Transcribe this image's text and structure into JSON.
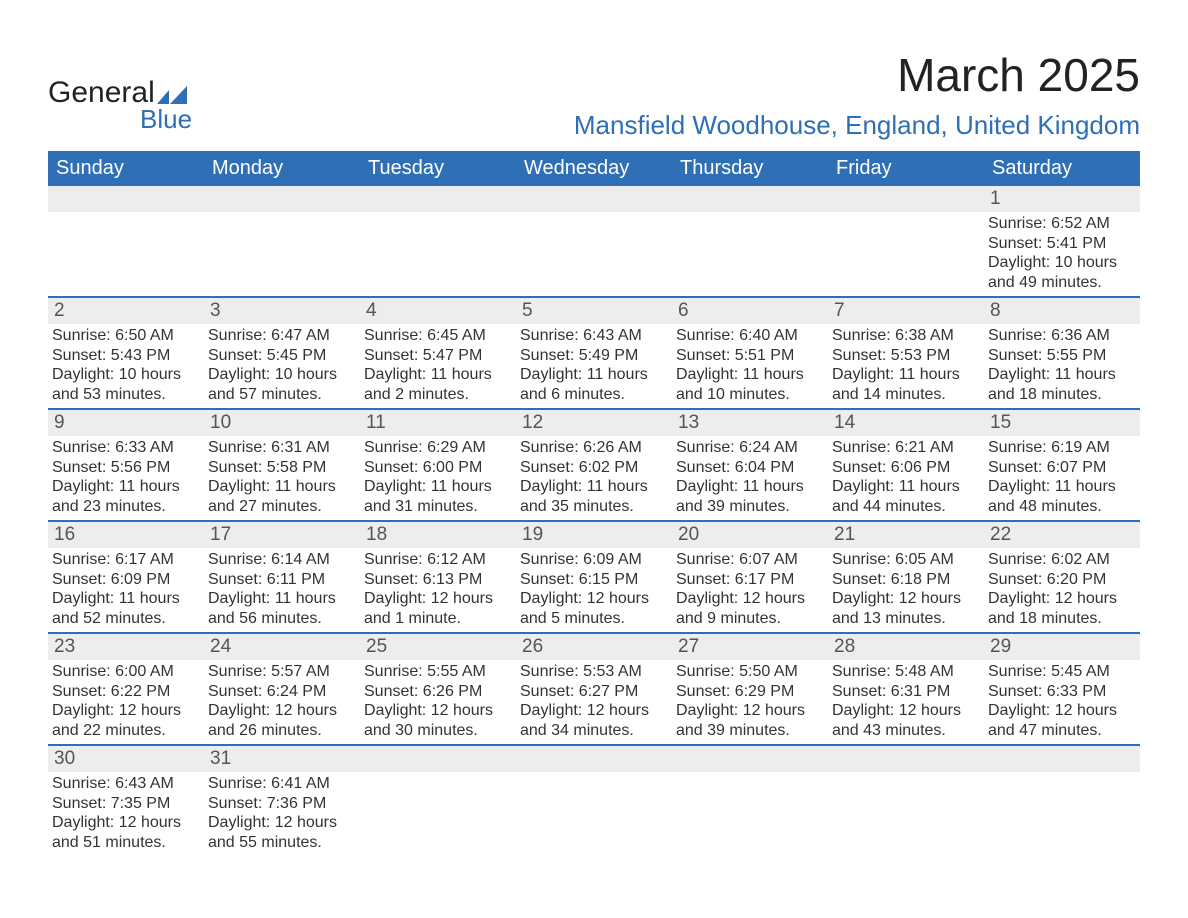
{
  "brand": {
    "name_part1": "General",
    "name_part2": "Blue",
    "accent_color": "#2e6fb5",
    "text_color": "#222222"
  },
  "header": {
    "month_title": "March 2025",
    "location": "Mansfield Woodhouse, England, United Kingdom",
    "title_fontsize": 46,
    "location_fontsize": 26
  },
  "calendar": {
    "header_bg": "#2e6fb5",
    "header_text_color": "#ffffff",
    "row_separator_color": "#2e6fb5",
    "daynum_bg": "#ededed",
    "body_text_color": "#333333",
    "days_of_week": [
      "Sunday",
      "Monday",
      "Tuesday",
      "Wednesday",
      "Thursday",
      "Friday",
      "Saturday"
    ],
    "weeks": [
      [
        null,
        null,
        null,
        null,
        null,
        null,
        {
          "n": "1",
          "sunrise": "6:52 AM",
          "sunset": "5:41 PM",
          "daylight": "10 hours and 49 minutes."
        }
      ],
      [
        {
          "n": "2",
          "sunrise": "6:50 AM",
          "sunset": "5:43 PM",
          "daylight": "10 hours and 53 minutes."
        },
        {
          "n": "3",
          "sunrise": "6:47 AM",
          "sunset": "5:45 PM",
          "daylight": "10 hours and 57 minutes."
        },
        {
          "n": "4",
          "sunrise": "6:45 AM",
          "sunset": "5:47 PM",
          "daylight": "11 hours and 2 minutes."
        },
        {
          "n": "5",
          "sunrise": "6:43 AM",
          "sunset": "5:49 PM",
          "daylight": "11 hours and 6 minutes."
        },
        {
          "n": "6",
          "sunrise": "6:40 AM",
          "sunset": "5:51 PM",
          "daylight": "11 hours and 10 minutes."
        },
        {
          "n": "7",
          "sunrise": "6:38 AM",
          "sunset": "5:53 PM",
          "daylight": "11 hours and 14 minutes."
        },
        {
          "n": "8",
          "sunrise": "6:36 AM",
          "sunset": "5:55 PM",
          "daylight": "11 hours and 18 minutes."
        }
      ],
      [
        {
          "n": "9",
          "sunrise": "6:33 AM",
          "sunset": "5:56 PM",
          "daylight": "11 hours and 23 minutes."
        },
        {
          "n": "10",
          "sunrise": "6:31 AM",
          "sunset": "5:58 PM",
          "daylight": "11 hours and 27 minutes."
        },
        {
          "n": "11",
          "sunrise": "6:29 AM",
          "sunset": "6:00 PM",
          "daylight": "11 hours and 31 minutes."
        },
        {
          "n": "12",
          "sunrise": "6:26 AM",
          "sunset": "6:02 PM",
          "daylight": "11 hours and 35 minutes."
        },
        {
          "n": "13",
          "sunrise": "6:24 AM",
          "sunset": "6:04 PM",
          "daylight": "11 hours and 39 minutes."
        },
        {
          "n": "14",
          "sunrise": "6:21 AM",
          "sunset": "6:06 PM",
          "daylight": "11 hours and 44 minutes."
        },
        {
          "n": "15",
          "sunrise": "6:19 AM",
          "sunset": "6:07 PM",
          "daylight": "11 hours and 48 minutes."
        }
      ],
      [
        {
          "n": "16",
          "sunrise": "6:17 AM",
          "sunset": "6:09 PM",
          "daylight": "11 hours and 52 minutes."
        },
        {
          "n": "17",
          "sunrise": "6:14 AM",
          "sunset": "6:11 PM",
          "daylight": "11 hours and 56 minutes."
        },
        {
          "n": "18",
          "sunrise": "6:12 AM",
          "sunset": "6:13 PM",
          "daylight": "12 hours and 1 minute."
        },
        {
          "n": "19",
          "sunrise": "6:09 AM",
          "sunset": "6:15 PM",
          "daylight": "12 hours and 5 minutes."
        },
        {
          "n": "20",
          "sunrise": "6:07 AM",
          "sunset": "6:17 PM",
          "daylight": "12 hours and 9 minutes."
        },
        {
          "n": "21",
          "sunrise": "6:05 AM",
          "sunset": "6:18 PM",
          "daylight": "12 hours and 13 minutes."
        },
        {
          "n": "22",
          "sunrise": "6:02 AM",
          "sunset": "6:20 PM",
          "daylight": "12 hours and 18 minutes."
        }
      ],
      [
        {
          "n": "23",
          "sunrise": "6:00 AM",
          "sunset": "6:22 PM",
          "daylight": "12 hours and 22 minutes."
        },
        {
          "n": "24",
          "sunrise": "5:57 AM",
          "sunset": "6:24 PM",
          "daylight": "12 hours and 26 minutes."
        },
        {
          "n": "25",
          "sunrise": "5:55 AM",
          "sunset": "6:26 PM",
          "daylight": "12 hours and 30 minutes."
        },
        {
          "n": "26",
          "sunrise": "5:53 AM",
          "sunset": "6:27 PM",
          "daylight": "12 hours and 34 minutes."
        },
        {
          "n": "27",
          "sunrise": "5:50 AM",
          "sunset": "6:29 PM",
          "daylight": "12 hours and 39 minutes."
        },
        {
          "n": "28",
          "sunrise": "5:48 AM",
          "sunset": "6:31 PM",
          "daylight": "12 hours and 43 minutes."
        },
        {
          "n": "29",
          "sunrise": "5:45 AM",
          "sunset": "6:33 PM",
          "daylight": "12 hours and 47 minutes."
        }
      ],
      [
        {
          "n": "30",
          "sunrise": "6:43 AM",
          "sunset": "7:35 PM",
          "daylight": "12 hours and 51 minutes."
        },
        {
          "n": "31",
          "sunrise": "6:41 AM",
          "sunset": "7:36 PM",
          "daylight": "12 hours and 55 minutes."
        },
        null,
        null,
        null,
        null,
        null
      ]
    ],
    "labels": {
      "sunrise": "Sunrise:",
      "sunset": "Sunset:",
      "daylight": "Daylight:"
    }
  }
}
